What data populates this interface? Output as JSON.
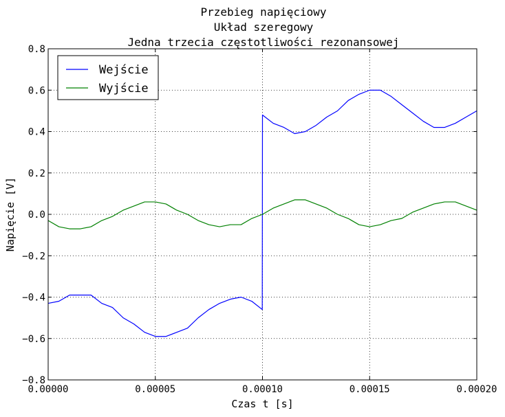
{
  "chart_data": {
    "type": "line",
    "title": [
      "Przebieg napięciowy",
      "Układ szeregowy",
      "Jedna trzecia częstotliwości rezonansowej"
    ],
    "xlabel": "Czas t [s]",
    "ylabel": "Napięcie [V]",
    "xlim": [
      0.0,
      0.0002
    ],
    "ylim": [
      -0.8,
      0.8
    ],
    "xticks": [
      "0.00000",
      "0.00005",
      "0.00010",
      "0.00015",
      "0.00020"
    ],
    "yticks": [
      "−0.8",
      "−0.6",
      "−0.4",
      "−0.2",
      "0.0",
      "0.2",
      "0.4",
      "0.6",
      "0.8"
    ],
    "grid": true,
    "legend_position": "top-left",
    "series": [
      {
        "name": "Wejście",
        "color": "#0000ff",
        "x": [
          0.0,
          5e-06,
          1e-05,
          1.5e-05,
          2e-05,
          2.5e-05,
          3e-05,
          3.5e-05,
          4e-05,
          4.5e-05,
          5e-05,
          5.5e-05,
          6e-05,
          6.5e-05,
          7e-05,
          7.5e-05,
          8e-05,
          8.5e-05,
          9e-05,
          9.5e-05,
          9.99e-05,
          0.0001,
          0.000105,
          0.00011,
          0.000115,
          0.00012,
          0.000125,
          0.00013,
          0.000135,
          0.00014,
          0.000145,
          0.00015,
          0.000155,
          0.00016,
          0.000165,
          0.00017,
          0.000175,
          0.00018,
          0.000185,
          0.00019,
          0.000195,
          0.0002
        ],
        "y": [
          -0.43,
          -0.42,
          -0.39,
          -0.39,
          -0.39,
          -0.43,
          -0.45,
          -0.5,
          -0.53,
          -0.57,
          -0.59,
          -0.59,
          -0.57,
          -0.55,
          -0.5,
          -0.46,
          -0.43,
          -0.41,
          -0.4,
          -0.42,
          -0.46,
          0.48,
          0.44,
          0.42,
          0.39,
          0.4,
          0.43,
          0.47,
          0.5,
          0.55,
          0.58,
          0.6,
          0.6,
          0.57,
          0.53,
          0.49,
          0.45,
          0.42,
          0.42,
          0.44,
          0.47,
          0.5
        ]
      },
      {
        "name": "Wyjście",
        "color": "#008000",
        "x": [
          0.0,
          5e-06,
          1e-05,
          1.5e-05,
          2e-05,
          2.5e-05,
          3e-05,
          3.5e-05,
          4e-05,
          4.5e-05,
          5e-05,
          5.5e-05,
          6e-05,
          6.5e-05,
          7e-05,
          7.5e-05,
          8e-05,
          8.5e-05,
          9e-05,
          9.5e-05,
          0.0001,
          0.000105,
          0.00011,
          0.000115,
          0.00012,
          0.000125,
          0.00013,
          0.000135,
          0.00014,
          0.000145,
          0.00015,
          0.000155,
          0.00016,
          0.000165,
          0.00017,
          0.000175,
          0.00018,
          0.000185,
          0.00019,
          0.000195,
          0.0002
        ],
        "y": [
          -0.03,
          -0.06,
          -0.07,
          -0.07,
          -0.06,
          -0.03,
          -0.01,
          0.02,
          0.04,
          0.06,
          0.06,
          0.05,
          0.02,
          0.0,
          -0.03,
          -0.05,
          -0.06,
          -0.05,
          -0.05,
          -0.02,
          0.0,
          0.03,
          0.05,
          0.07,
          0.07,
          0.05,
          0.03,
          0.0,
          -0.02,
          -0.05,
          -0.06,
          -0.05,
          -0.03,
          -0.02,
          0.01,
          0.03,
          0.05,
          0.06,
          0.06,
          0.04,
          0.02
        ]
      }
    ]
  }
}
